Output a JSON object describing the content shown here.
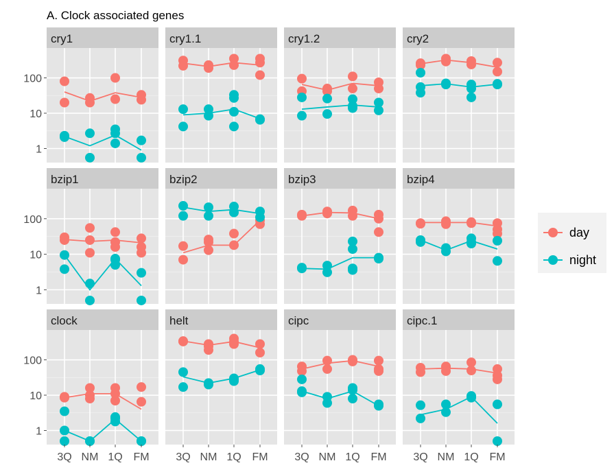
{
  "title": "A. Clock associated genes",
  "colors": {
    "day": "#F8766D",
    "night": "#00BFC4",
    "panel_bg": "#E5E5E5",
    "strip_bg": "#CCCCCC",
    "grid": "#FFFFFF"
  },
  "legend": {
    "items": [
      {
        "label": "day",
        "color": "#F8766D"
      },
      {
        "label": "night",
        "color": "#00BFC4"
      }
    ]
  },
  "chart_data": {
    "type": "scatter",
    "title": "A. Clock associated genes",
    "xlabel": "",
    "ylabel": "",
    "categories": [
      "3Q",
      "NM",
      "1Q",
      "FM"
    ],
    "y_scale": "log",
    "y_ticks": [
      1,
      10,
      100
    ],
    "y_tick_labels": [
      "1",
      "10",
      "100"
    ],
    "ylim": [
      0.4,
      700
    ],
    "grid": true,
    "legend_position": "right",
    "series_names": [
      "day",
      "night"
    ],
    "panels": [
      {
        "name": "cry1",
        "points": {
          "day": [
            [
              "3Q",
              80
            ],
            [
              "3Q",
              20
            ],
            [
              "NM",
              27
            ],
            [
              "NM",
              20
            ],
            [
              "1Q",
              100
            ],
            [
              "1Q",
              25
            ],
            [
              "FM",
              33
            ],
            [
              "FM",
              24
            ]
          ],
          "night": [
            [
              "3Q",
              2.3
            ],
            [
              "3Q",
              2.1
            ],
            [
              "NM",
              2.7
            ],
            [
              "NM",
              0.55
            ],
            [
              "1Q",
              3.5
            ],
            [
              "1Q",
              2.7
            ],
            [
              "1Q",
              1.4
            ],
            [
              "FM",
              1.7
            ],
            [
              "FM",
              0.55
            ]
          ]
        },
        "line": {
          "day": [
            40,
            22,
            38,
            28
          ],
          "night": [
            2.2,
            1.2,
            2.4,
            0.9
          ]
        }
      },
      {
        "name": "cry1.1",
        "points": {
          "day": [
            [
              "3Q",
              310
            ],
            [
              "3Q",
              220
            ],
            [
              "NM",
              230
            ],
            [
              "NM",
              190
            ],
            [
              "1Q",
              350
            ],
            [
              "1Q",
              230
            ],
            [
              "FM",
              350
            ],
            [
              "FM",
              270
            ],
            [
              "FM",
              120
            ]
          ],
          "night": [
            [
              "3Q",
              13
            ],
            [
              "3Q",
              4.2
            ],
            [
              "NM",
              13
            ],
            [
              "NM",
              8.5
            ],
            [
              "1Q",
              33
            ],
            [
              "1Q",
              27
            ],
            [
              "1Q",
              11
            ],
            [
              "1Q",
              4.2
            ],
            [
              "FM",
              6.8
            ],
            [
              "FM",
              6.5
            ]
          ]
        },
        "line": {
          "day": [
            260,
            210,
            270,
            230
          ],
          "night": [
            9,
            10,
            13,
            7
          ]
        }
      },
      {
        "name": "cry1.2",
        "points": {
          "day": [
            [
              "3Q",
              95
            ],
            [
              "3Q",
              42
            ],
            [
              "NM",
              50
            ],
            [
              "NM",
              42
            ],
            [
              "1Q",
              110
            ],
            [
              "1Q",
              50
            ],
            [
              "FM",
              75
            ],
            [
              "FM",
              50
            ]
          ],
          "night": [
            [
              "3Q",
              28
            ],
            [
              "3Q",
              8.5
            ],
            [
              "NM",
              26
            ],
            [
              "NM",
              9.5
            ],
            [
              "1Q",
              25
            ],
            [
              "1Q",
              16
            ],
            [
              "1Q",
              14
            ],
            [
              "FM",
              20
            ],
            [
              "FM",
              12
            ]
          ]
        },
        "line": {
          "day": [
            65,
            45,
            70,
            60
          ],
          "night": [
            13,
            15,
            17,
            15
          ]
        }
      },
      {
        "name": "cry2",
        "points": {
          "day": [
            [
              "3Q",
              260
            ],
            [
              "3Q",
              230
            ],
            [
              "NM",
              350
            ],
            [
              "NM",
              290
            ],
            [
              "1Q",
              300
            ],
            [
              "1Q",
              240
            ],
            [
              "FM",
              270
            ],
            [
              "FM",
              150
            ]
          ],
          "night": [
            [
              "3Q",
              140
            ],
            [
              "3Q",
              55
            ],
            [
              "3Q",
              38
            ],
            [
              "NM",
              70
            ],
            [
              "NM",
              65
            ],
            [
              "1Q",
              65
            ],
            [
              "1Q",
              50
            ],
            [
              "1Q",
              28
            ],
            [
              "FM",
              68
            ],
            [
              "FM",
              65
            ]
          ]
        },
        "line": {
          "day": [
            250,
            320,
            270,
            200
          ],
          "night": [
            60,
            68,
            55,
            66
          ]
        }
      },
      {
        "name": "bzip1",
        "points": {
          "day": [
            [
              "3Q",
              30
            ],
            [
              "3Q",
              25
            ],
            [
              "NM",
              55
            ],
            [
              "NM",
              25
            ],
            [
              "NM",
              11
            ],
            [
              "1Q",
              42
            ],
            [
              "1Q",
              22
            ],
            [
              "1Q",
              16
            ],
            [
              "FM",
              28
            ],
            [
              "FM",
              16
            ],
            [
              "FM",
              11
            ]
          ],
          "night": [
            [
              "3Q",
              9.5
            ],
            [
              "3Q",
              3.8
            ],
            [
              "NM",
              1.5
            ],
            [
              "NM",
              0.5
            ],
            [
              "1Q",
              7.5
            ],
            [
              "1Q",
              7
            ],
            [
              "1Q",
              5
            ],
            [
              "FM",
              3
            ],
            [
              "FM",
              0.5
            ]
          ]
        },
        "line": {
          "day": [
            26,
            23,
            25,
            21
          ],
          "night": [
            9.5,
            1,
            7.5,
            1.3
          ]
        }
      },
      {
        "name": "bzip2",
        "points": {
          "day": [
            [
              "3Q",
              17
            ],
            [
              "3Q",
              7
            ],
            [
              "NM",
              26
            ],
            [
              "NM",
              22
            ],
            [
              "NM",
              13
            ],
            [
              "1Q",
              38
            ],
            [
              "1Q",
              18
            ],
            [
              "FM",
              90
            ],
            [
              "FM",
              70
            ]
          ],
          "night": [
            [
              "3Q",
              230
            ],
            [
              "3Q",
              120
            ],
            [
              "NM",
              210
            ],
            [
              "NM",
              120
            ],
            [
              "1Q",
              220
            ],
            [
              "1Q",
              150
            ],
            [
              "FM",
              160
            ],
            [
              "FM",
              110
            ]
          ]
        },
        "line": {
          "day": [
            11,
            18,
            18,
            90
          ],
          "night": [
            210,
            160,
            180,
            140
          ]
        }
      },
      {
        "name": "bzip3",
        "points": {
          "day": [
            [
              "3Q",
              130
            ],
            [
              "3Q",
              120
            ],
            [
              "NM",
              160
            ],
            [
              "NM",
              140
            ],
            [
              "1Q",
              170
            ],
            [
              "1Q",
              120
            ],
            [
              "FM",
              130
            ],
            [
              "FM",
              100
            ],
            [
              "FM",
              42
            ]
          ],
          "night": [
            [
              "3Q",
              4.2
            ],
            [
              "3Q",
              4
            ],
            [
              "NM",
              4.8
            ],
            [
              "NM",
              3.1
            ],
            [
              "1Q",
              23
            ],
            [
              "1Q",
              14
            ],
            [
              "1Q",
              4
            ],
            [
              "1Q",
              3.6
            ],
            [
              "FM",
              8
            ],
            [
              "FM",
              7.5
            ]
          ]
        },
        "line": {
          "day": [
            120,
            150,
            145,
            100
          ],
          "night": [
            4,
            3.8,
            8,
            8
          ]
        }
      },
      {
        "name": "bzip4",
        "points": {
          "day": [
            [
              "3Q",
              75
            ],
            [
              "3Q",
              72
            ],
            [
              "NM",
              85
            ],
            [
              "NM",
              70
            ],
            [
              "1Q",
              80
            ],
            [
              "1Q",
              75
            ],
            [
              "FM",
              75
            ],
            [
              "FM",
              50
            ],
            [
              "FM",
              38
            ]
          ],
          "night": [
            [
              "3Q",
              25
            ],
            [
              "3Q",
              22
            ],
            [
              "NM",
              15
            ],
            [
              "NM",
              12
            ],
            [
              "1Q",
              28
            ],
            [
              "1Q",
              22
            ],
            [
              "1Q",
              20
            ],
            [
              "FM",
              24
            ],
            [
              "FM",
              6.5
            ]
          ]
        },
        "line": {
          "day": [
            78,
            78,
            78,
            62
          ],
          "night": [
            25,
            13,
            24,
            14
          ]
        }
      },
      {
        "name": "clock",
        "points": {
          "day": [
            [
              "3Q",
              9
            ],
            [
              "3Q",
              8.5
            ],
            [
              "NM",
              16
            ],
            [
              "NM",
              10
            ],
            [
              "NM",
              8
            ],
            [
              "1Q",
              16
            ],
            [
              "1Q",
              11
            ],
            [
              "1Q",
              7
            ],
            [
              "FM",
              17
            ],
            [
              "FM",
              6.5
            ]
          ],
          "night": [
            [
              "3Q",
              3.5
            ],
            [
              "3Q",
              1
            ],
            [
              "3Q",
              0.5
            ],
            [
              "NM",
              0.5
            ],
            [
              "NM",
              0.5
            ],
            [
              "1Q",
              2.4
            ],
            [
              "1Q",
              2.2
            ],
            [
              "1Q",
              1.8
            ],
            [
              "FM",
              0.5
            ],
            [
              "FM",
              0.5
            ]
          ]
        },
        "line": {
          "day": [
            8.5,
            11,
            11,
            4
          ],
          "night": [
            1,
            0.5,
            2.1,
            0.5
          ]
        }
      },
      {
        "name": "helt",
        "points": {
          "day": [
            [
              "3Q",
              340
            ],
            [
              "3Q",
              330
            ],
            [
              "NM",
              280
            ],
            [
              "NM",
              240
            ],
            [
              "NM",
              190
            ],
            [
              "1Q",
              400
            ],
            [
              "1Q",
              330
            ],
            [
              "1Q",
              280
            ],
            [
              "FM",
              280
            ],
            [
              "FM",
              160
            ]
          ],
          "night": [
            [
              "3Q",
              45
            ],
            [
              "3Q",
              17
            ],
            [
              "NM",
              22
            ],
            [
              "NM",
              20
            ],
            [
              "1Q",
              30
            ],
            [
              "1Q",
              27
            ],
            [
              "1Q",
              25
            ],
            [
              "FM",
              55
            ],
            [
              "FM",
              50
            ]
          ]
        },
        "line": {
          "day": [
            340,
            260,
            330,
            220
          ],
          "night": [
            33,
            22,
            30,
            52
          ]
        }
      },
      {
        "name": "cipc",
        "points": {
          "day": [
            [
              "3Q",
              65
            ],
            [
              "3Q",
              48
            ],
            [
              "NM",
              95
            ],
            [
              "NM",
              55
            ],
            [
              "1Q",
              100
            ],
            [
              "1Q",
              90
            ],
            [
              "FM",
              95
            ],
            [
              "FM",
              55
            ],
            [
              "FM",
              48
            ]
          ],
          "night": [
            [
              "3Q",
              28
            ],
            [
              "3Q",
              13
            ],
            [
              "3Q",
              12
            ],
            [
              "NM",
              9
            ],
            [
              "NM",
              6
            ],
            [
              "1Q",
              16
            ],
            [
              "1Q",
              14
            ],
            [
              "1Q",
              8
            ],
            [
              "FM",
              5.5
            ],
            [
              "FM",
              5
            ]
          ]
        },
        "line": {
          "day": [
            55,
            80,
            95,
            65
          ],
          "night": [
            13,
            8,
            13,
            5
          ]
        }
      },
      {
        "name": "cipc.1",
        "points": {
          "day": [
            [
              "3Q",
              60
            ],
            [
              "3Q",
              45
            ],
            [
              "NM",
              65
            ],
            [
              "NM",
              60
            ],
            [
              "NM",
              48
            ],
            [
              "1Q",
              85
            ],
            [
              "1Q",
              50
            ],
            [
              "FM",
              55
            ],
            [
              "FM",
              36
            ],
            [
              "FM",
              28
            ]
          ],
          "night": [
            [
              "3Q",
              5.2
            ],
            [
              "3Q",
              2.2
            ],
            [
              "NM",
              5.5
            ],
            [
              "NM",
              3.3
            ],
            [
              "1Q",
              9.5
            ],
            [
              "1Q",
              8.5
            ],
            [
              "FM",
              5.5
            ],
            [
              "FM",
              0.5
            ]
          ]
        },
        "line": {
          "day": [
            55,
            58,
            55,
            42
          ],
          "night": [
            2.8,
            4,
            9,
            1.6
          ]
        }
      }
    ]
  }
}
